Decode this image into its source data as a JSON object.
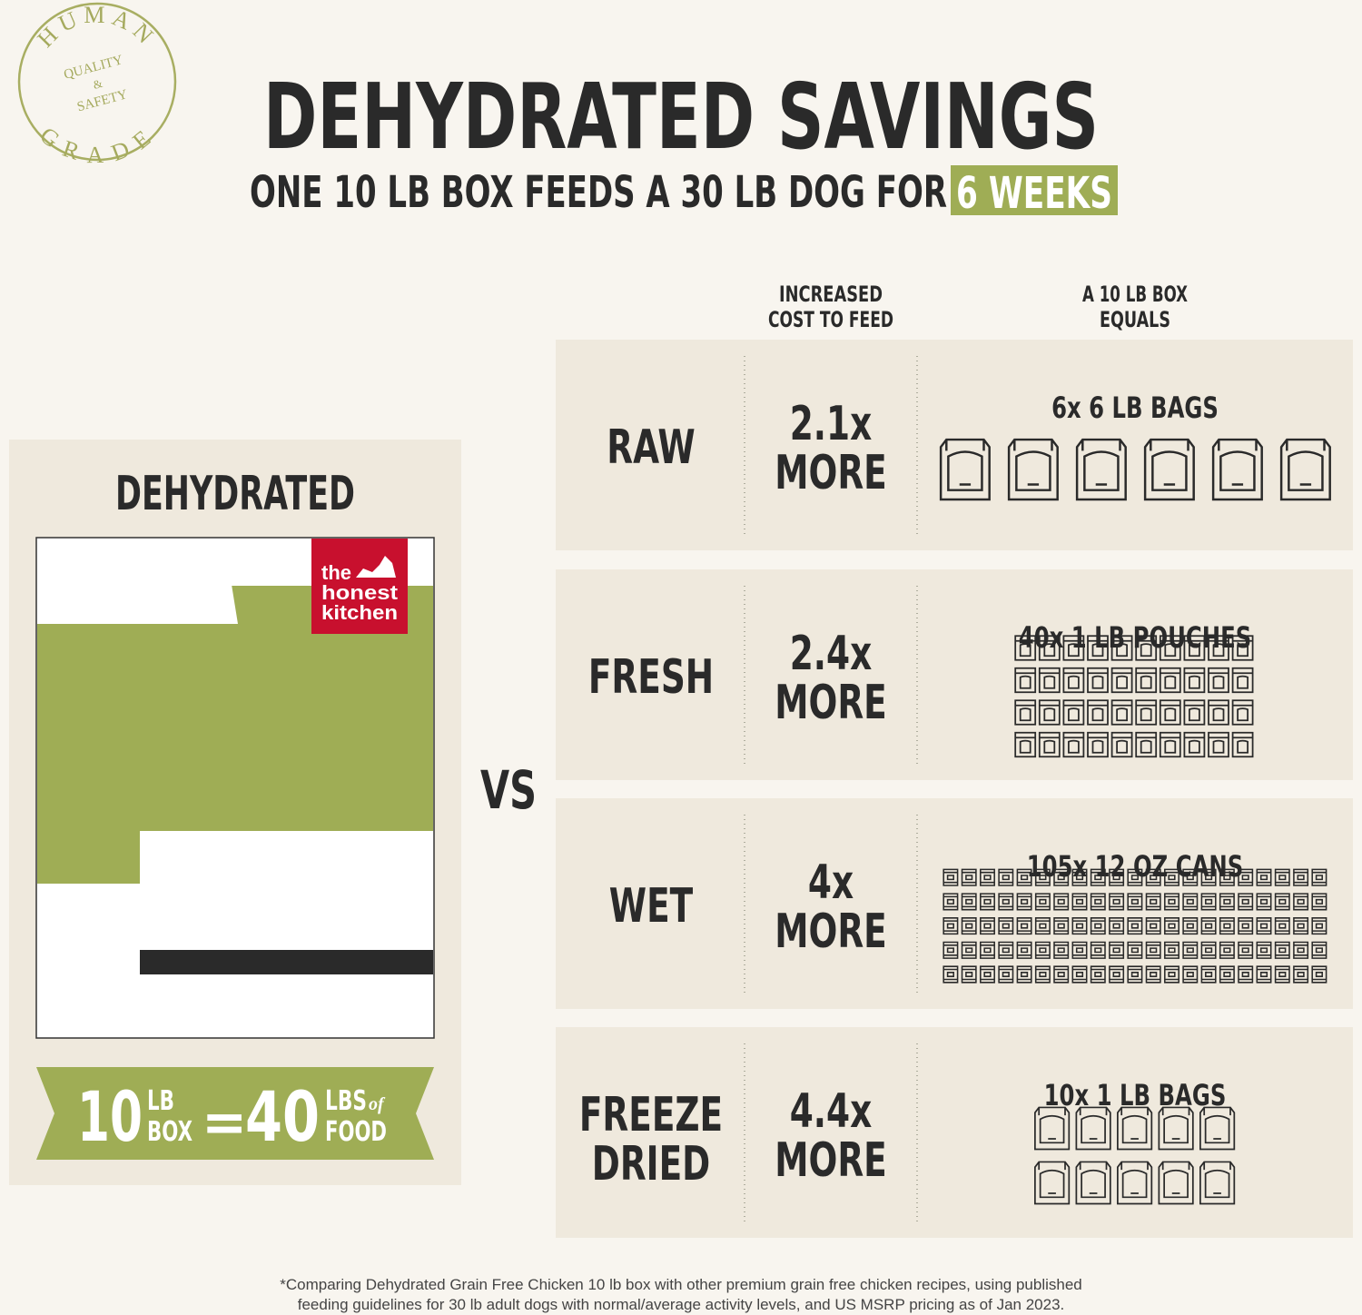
{
  "badge": {
    "top": "HUMAN",
    "middle": [
      "QUALITY",
      "&",
      "SAFETY"
    ],
    "bottom": "GRADE"
  },
  "header": {
    "title": "DEHYDRATED SAVINGS",
    "subtitle": "ONE 10 LB BOX FEEDS A 30 LB DOG FOR",
    "highlight": "6 WEEKS"
  },
  "columns": [
    [
      "INCREASED",
      "COST TO FEED"
    ],
    [
      "A 10 LB BOX",
      "EQUALS"
    ]
  ],
  "left_panel": {
    "label": "DEHYDRATED",
    "brand": [
      "the",
      "honest",
      "kitchen"
    ],
    "banner": {
      "left_number": "10",
      "left_unit": [
        "LB",
        "BOX"
      ],
      "equals": "=",
      "right_number": "40",
      "right_unit": [
        "LBS",
        "FOOD"
      ],
      "connector": "of"
    }
  },
  "vs": "VS",
  "rows": [
    {
      "type": [
        "RAW"
      ],
      "cost": [
        "2.1x",
        "MORE"
      ],
      "equals": "6x 6 LB BAGS"
    },
    {
      "type": [
        "FRESH"
      ],
      "cost": [
        "2.4x",
        "MORE"
      ],
      "equals": "40x 1 LB POUCHES"
    },
    {
      "type": [
        "WET"
      ],
      "cost": [
        "4x",
        "MORE"
      ],
      "equals": "105x 12 OZ CANS"
    },
    {
      "type": [
        "FREEZE",
        "DRIED"
      ],
      "cost": [
        "4.4x",
        "MORE"
      ],
      "equals": "10x 1 LB BAGS"
    }
  ],
  "footnote": [
    "*Comparing Dehydrated Grain Free Chicken 10 lb box with other premium grain free chicken recipes, using published",
    "feeding guidelines for 30 lb adult dogs with normal/average activity levels, and US MSRP pricing as of Jan 2023."
  ]
}
